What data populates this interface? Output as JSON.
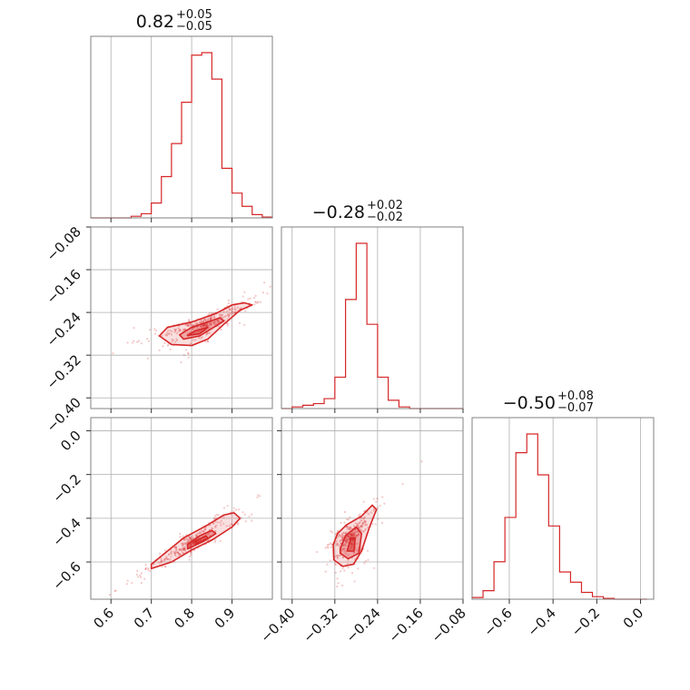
{
  "chart_data": {
    "type": "corner",
    "color": "#d62728",
    "parameters": [
      {
        "median": "0.82",
        "upper": "+0.05",
        "lower": "−0.05",
        "range": [
          0.55,
          1.0
        ],
        "ticks": [
          {
            "v": 0.6,
            "t": "0.6"
          },
          {
            "v": 0.7,
            "t": "0.7"
          },
          {
            "v": 0.8,
            "t": "0.8"
          },
          {
            "v": 0.9,
            "t": "0.9"
          }
        ]
      },
      {
        "median": "−0.28",
        "upper": "+0.02",
        "lower": "−0.02",
        "range": [
          -0.42,
          -0.08
        ],
        "ticks": [
          {
            "v": -0.4,
            "t": "−0.40"
          },
          {
            "v": -0.32,
            "t": "−0.32"
          },
          {
            "v": -0.24,
            "t": "−0.24"
          },
          {
            "v": -0.16,
            "t": "−0.16"
          },
          {
            "v": -0.08,
            "t": "−0.08"
          }
        ]
      },
      {
        "median": "−0.50",
        "upper": "+0.08",
        "lower": "−0.07",
        "range": [
          -0.77,
          0.06
        ],
        "ticks": [
          {
            "v": -0.6,
            "t": "−0.6"
          },
          {
            "v": -0.4,
            "t": "−0.4"
          },
          {
            "v": -0.2,
            "t": "−0.2"
          },
          {
            "v": 0.0,
            "t": "0.0"
          }
        ]
      }
    ],
    "histograms": [
      {
        "edges": [
          0.55,
          0.575,
          0.6,
          0.625,
          0.65,
          0.675,
          0.7,
          0.725,
          0.75,
          0.775,
          0.8,
          0.825,
          0.85,
          0.875,
          0.9,
          0.925,
          0.95,
          0.975,
          1.0
        ],
        "counts": [
          0,
          0,
          0,
          0,
          0.01,
          0.025,
          0.09,
          0.25,
          0.45,
          0.7,
          0.985,
          1.0,
          0.84,
          0.3,
          0.15,
          0.07,
          0.02,
          0.005
        ]
      },
      {
        "edges": [
          -0.42,
          -0.4,
          -0.38,
          -0.36,
          -0.34,
          -0.32,
          -0.3,
          -0.28,
          -0.26,
          -0.24,
          -0.22,
          -0.2,
          -0.18,
          -0.16,
          -0.14,
          -0.12,
          -0.1,
          -0.08
        ],
        "counts": [
          0,
          0.01,
          0.02,
          0.03,
          0.06,
          0.19,
          0.66,
          1.0,
          0.51,
          0.19,
          0.05,
          0.01,
          0,
          0,
          0,
          0,
          0
        ]
      },
      {
        "edges": [
          -0.77,
          -0.72,
          -0.67,
          -0.62,
          -0.57,
          -0.52,
          -0.47,
          -0.42,
          -0.37,
          -0.32,
          -0.27,
          -0.22,
          -0.17,
          -0.12,
          -0.07,
          -0.02,
          0.03
        ],
        "counts": [
          0.01,
          0.05,
          0.22,
          0.48,
          0.86,
          0.97,
          0.73,
          0.43,
          0.16,
          0.1,
          0.04,
          0.015,
          0.005,
          0,
          0,
          0
        ]
      }
    ],
    "pair_contours": [
      {
        "x": 0,
        "y": 1,
        "levels": [
          [
            [
              0.72,
              -0.284
            ],
            [
              0.74,
              -0.268
            ],
            [
              0.8,
              -0.258
            ],
            [
              0.86,
              -0.242
            ],
            [
              0.9,
              -0.226
            ],
            [
              0.93,
              -0.222
            ],
            [
              0.95,
              -0.226
            ],
            [
              0.92,
              -0.236
            ],
            [
              0.88,
              -0.262
            ],
            [
              0.84,
              -0.29
            ],
            [
              0.8,
              -0.302
            ],
            [
              0.75,
              -0.3
            ],
            [
              0.72,
              -0.284
            ]
          ],
          [
            [
              0.77,
              -0.282
            ],
            [
              0.8,
              -0.268
            ],
            [
              0.84,
              -0.258
            ],
            [
              0.87,
              -0.25
            ],
            [
              0.88,
              -0.256
            ],
            [
              0.85,
              -0.27
            ],
            [
              0.82,
              -0.284
            ],
            [
              0.78,
              -0.29
            ],
            [
              0.77,
              -0.282
            ]
          ],
          [
            [
              0.79,
              -0.283
            ],
            [
              0.81,
              -0.274
            ],
            [
              0.84,
              -0.268
            ],
            [
              0.82,
              -0.28
            ],
            [
              0.79,
              -0.283
            ]
          ]
        ]
      },
      {
        "x": 0,
        "y": 2,
        "levels": [
          [
            [
              0.7,
              -0.63
            ],
            [
              0.75,
              -0.6
            ],
            [
              0.8,
              -0.545
            ],
            [
              0.85,
              -0.5
            ],
            [
              0.9,
              -0.44
            ],
            [
              0.92,
              -0.4
            ],
            [
              0.905,
              -0.375
            ],
            [
              0.88,
              -0.385
            ],
            [
              0.84,
              -0.43
            ],
            [
              0.78,
              -0.49
            ],
            [
              0.74,
              -0.55
            ],
            [
              0.7,
              -0.61
            ],
            [
              0.7,
              -0.63
            ]
          ],
          [
            [
              0.79,
              -0.54
            ],
            [
              0.83,
              -0.505
            ],
            [
              0.86,
              -0.47
            ],
            [
              0.85,
              -0.455
            ],
            [
              0.82,
              -0.48
            ],
            [
              0.79,
              -0.52
            ],
            [
              0.79,
              -0.54
            ]
          ],
          [
            [
              0.81,
              -0.52
            ],
            [
              0.84,
              -0.49
            ],
            [
              0.835,
              -0.48
            ],
            [
              0.81,
              -0.505
            ],
            [
              0.81,
              -0.52
            ]
          ]
        ]
      },
      {
        "x": 1,
        "y": 2,
        "levels": [
          [
            [
              -0.323,
              -0.52
            ],
            [
              -0.315,
              -0.47
            ],
            [
              -0.298,
              -0.43
            ],
            [
              -0.27,
              -0.39
            ],
            [
              -0.25,
              -0.34
            ],
            [
              -0.242,
              -0.36
            ],
            [
              -0.255,
              -0.44
            ],
            [
              -0.27,
              -0.55
            ],
            [
              -0.285,
              -0.61
            ],
            [
              -0.305,
              -0.62
            ],
            [
              -0.322,
              -0.59
            ],
            [
              -0.323,
              -0.52
            ]
          ],
          [
            [
              -0.31,
              -0.54
            ],
            [
              -0.3,
              -0.48
            ],
            [
              -0.28,
              -0.44
            ],
            [
              -0.27,
              -0.47
            ],
            [
              -0.275,
              -0.56
            ],
            [
              -0.295,
              -0.585
            ],
            [
              -0.31,
              -0.56
            ],
            [
              -0.31,
              -0.54
            ]
          ],
          [
            [
              -0.297,
              -0.55
            ],
            [
              -0.29,
              -0.49
            ],
            [
              -0.282,
              -0.49
            ],
            [
              -0.284,
              -0.55
            ],
            [
              -0.297,
              -0.55
            ]
          ]
        ]
      }
    ],
    "grid": true
  }
}
